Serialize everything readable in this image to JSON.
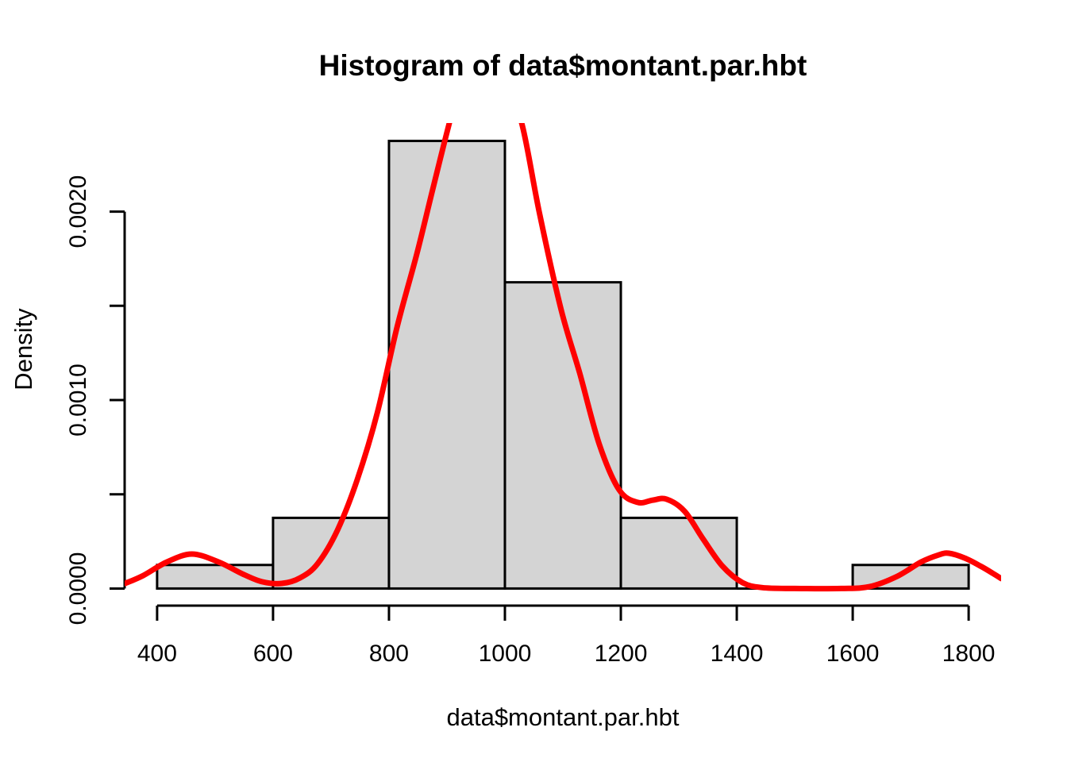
{
  "chart_data": {
    "type": "bar",
    "subtype": "histogram-with-density-overlay",
    "title": "Histogram of data$montant.par.hbt",
    "xlabel": "data$montant.par.hbt",
    "ylabel": "Density",
    "grid": false,
    "background": "#ffffff",
    "bar_fill": "#d4d4d4",
    "bar_stroke": "#000000",
    "axis_color": "#000000",
    "curve_color": "#ff0000",
    "bin_breaks": [
      400,
      600,
      800,
      1000,
      1200,
      1400,
      1600,
      1800
    ],
    "bin_densities": [
      0.000125,
      0.000375,
      0.002375,
      0.001625,
      0.000375,
      0,
      0.000125
    ],
    "x_ticks": [
      {
        "value": 400,
        "label": "400"
      },
      {
        "value": 600,
        "label": "600"
      },
      {
        "value": 800,
        "label": "800"
      },
      {
        "value": 1000,
        "label": "1000"
      },
      {
        "value": 1200,
        "label": "1200"
      },
      {
        "value": 1400,
        "label": "1400"
      },
      {
        "value": 1600,
        "label": "1600"
      },
      {
        "value": 1800,
        "label": "1800"
      }
    ],
    "y_ticks": [
      {
        "value": 0,
        "label": "0.0000"
      },
      {
        "value": 0.0005,
        "label": ""
      },
      {
        "value": 0.001,
        "label": "0.0010"
      },
      {
        "value": 0.0015,
        "label": ""
      },
      {
        "value": 0.002,
        "label": "0.0020"
      }
    ],
    "x_range_usr": [
      344,
      1856
    ],
    "y_range_usr": [
      -9.5e-05,
      0.00247
    ],
    "density_curve": [
      [
        345,
        2.7e-05
      ],
      [
        376,
        6.9e-05
      ],
      [
        417,
        0.000141
      ],
      [
        460,
        0.000183
      ],
      [
        506,
        0.000141
      ],
      [
        547,
        7.8e-05
      ],
      [
        581,
        3.6e-05
      ],
      [
        615,
        2.7e-05
      ],
      [
        647,
        5.7e-05
      ],
      [
        677,
        0.000132
      ],
      [
        711,
        0.000309
      ],
      [
        745,
        0.000575
      ],
      [
        780,
        0.000933
      ],
      [
        814,
        0.001388
      ],
      [
        848,
        0.001775
      ],
      [
        875,
        0.002112
      ],
      [
        903,
        0.002457
      ],
      [
        930,
        0.00276
      ],
      [
        965,
        0.0029
      ],
      [
        1000,
        0.00272
      ],
      [
        1030,
        0.002457
      ],
      [
        1060,
        0.001986
      ],
      [
        1097,
        0.00148
      ],
      [
        1129,
        0.001143
      ],
      [
        1163,
        0.000764
      ],
      [
        1197,
        0.000524
      ],
      [
        1229,
        0.000457
      ],
      [
        1255,
        0.000469
      ],
      [
        1279,
        0.000474
      ],
      [
        1310,
        0.00041
      ],
      [
        1341,
        0.000267
      ],
      [
        1375,
        0.00012
      ],
      [
        1410,
        3.1e-05
      ],
      [
        1444,
        5e-06
      ],
      [
        1500,
        0.0
      ],
      [
        1580,
        0.0
      ],
      [
        1629,
        1e-05
      ],
      [
        1677,
        6.5e-05
      ],
      [
        1718,
        0.000141
      ],
      [
        1749,
        0.000179
      ],
      [
        1766,
        0.000187
      ],
      [
        1793,
        0.000162
      ],
      [
        1820,
        0.00012
      ],
      [
        1841,
        8.2e-05
      ],
      [
        1856,
        5.3e-05
      ]
    ]
  }
}
